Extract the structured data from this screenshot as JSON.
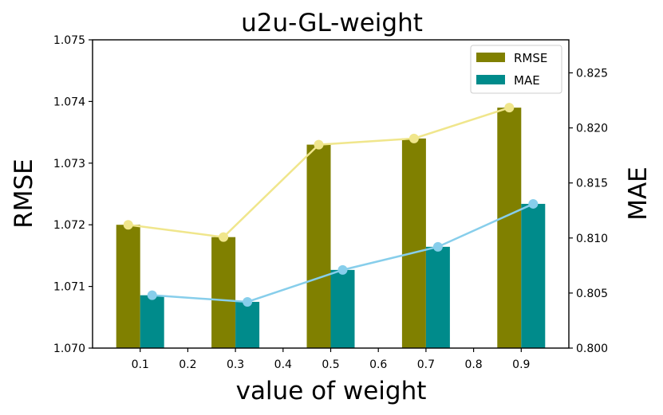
{
  "chart_data": {
    "type": "bar",
    "title": "u2u-GL-weight",
    "xlabel": "value of weight",
    "ylabel_left": "RMSE",
    "ylabel_right": "MAE",
    "x_ticks": [
      "0.1",
      "0.2",
      "0.3",
      "0.4",
      "0.5",
      "0.6",
      "0.7",
      "0.8",
      "0.9"
    ],
    "x_range": [
      0.0,
      1.0
    ],
    "left_axis": {
      "range": [
        1.07,
        1.075
      ],
      "ticks": [
        "1.070",
        "1.071",
        "1.072",
        "1.073",
        "1.074",
        "1.075"
      ]
    },
    "right_axis": {
      "range": [
        0.8,
        0.828
      ],
      "ticks": [
        "0.800",
        "0.805",
        "0.810",
        "0.815",
        "0.820",
        "0.825"
      ]
    },
    "series": [
      {
        "name": "RMSE",
        "axis": "left",
        "bar_color": "#808000",
        "line_color": "#f0e68c",
        "x": [
          0.1,
          0.3,
          0.5,
          0.7,
          0.9
        ],
        "values": [
          1.072,
          1.0718,
          1.0733,
          1.0734,
          1.0739
        ]
      },
      {
        "name": "MAE",
        "axis": "right",
        "bar_color": "#008b8b",
        "line_color": "#87ceeb",
        "x": [
          0.1,
          0.3,
          0.5,
          0.7,
          0.9
        ],
        "values": [
          0.8048,
          0.8042,
          0.8071,
          0.8092,
          0.8131
        ]
      }
    ],
    "legend": {
      "position": "top-right",
      "entries": [
        "RMSE",
        "MAE"
      ]
    },
    "grid": false
  }
}
